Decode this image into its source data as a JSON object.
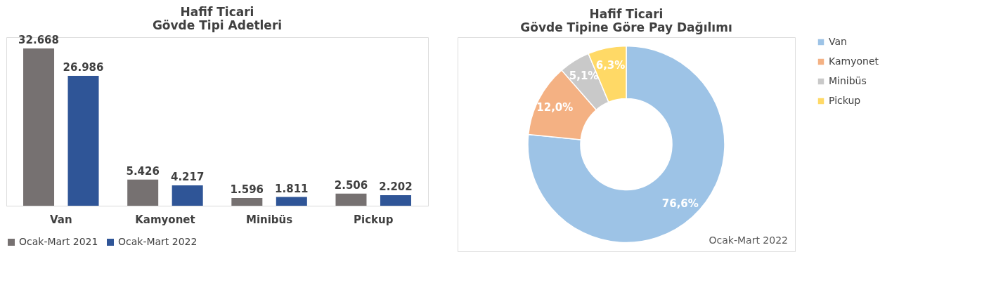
{
  "chart_data": [
    {
      "type": "bar",
      "title": "Hafif Ticari\nGövde Tipi Adetleri",
      "categories": [
        "Van",
        "Kamyonet",
        "Minibüs",
        "Pickup"
      ],
      "series": [
        {
          "name": "Ocak-Mart 2021",
          "color": "#767171",
          "values": [
            32668,
            5426,
            1596,
            2506
          ],
          "value_labels": [
            "32.668",
            "5.426",
            "1.596",
            "2.506"
          ]
        },
        {
          "name": "Ocak-Mart 2022",
          "color": "#2f5597",
          "values": [
            26986,
            4217,
            1811,
            2202
          ],
          "value_labels": [
            "26.986",
            "4.217",
            "1.811",
            "2.202"
          ]
        }
      ],
      "legend": "bottom"
    },
    {
      "type": "donut",
      "title": "Hafif Ticari\nGövde Tipine Göre Pay Dağılımı",
      "categories": [
        "Van",
        "Kamyonet",
        "Minibüs",
        "Pickup"
      ],
      "values": [
        76.6,
        12.0,
        5.1,
        6.3
      ],
      "colors": [
        "#9dc3e6",
        "#f4b183",
        "#c9c9c9",
        "#ffd966"
      ],
      "value_labels": [
        "76,6%",
        "12,0%",
        "5,1%",
        "6,3%"
      ],
      "legend": "right",
      "annotations": [
        "Ocak-Mart 2022"
      ]
    }
  ]
}
